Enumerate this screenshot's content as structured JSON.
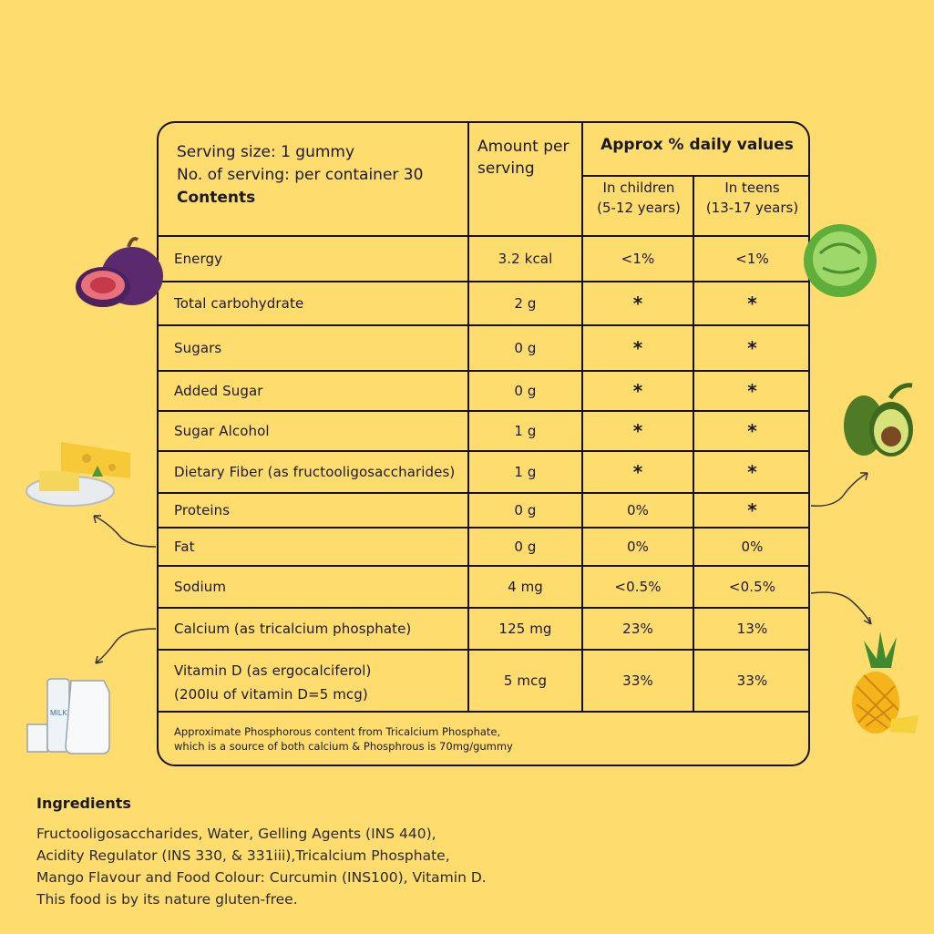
{
  "header": {
    "serving_size": "Serving size: 1 gummy",
    "servings": "No. of serving: per container 30",
    "contents": "Contents",
    "amount": "Amount per serving",
    "approx": "Approx % daily values",
    "children": "In children",
    "children_ages": "(5-12 years)",
    "teens": "In teens",
    "teens_ages": "(13-17 years)"
  },
  "rows": [
    {
      "name": "Energy",
      "amount": "3.2 kcal",
      "children": "<1%",
      "teens": "<1%"
    },
    {
      "name": "Total carbohydrate",
      "amount": "2 g",
      "children": "*",
      "teens": "*"
    },
    {
      "name": "Sugars",
      "amount": "0 g",
      "children": "*",
      "teens": "*"
    },
    {
      "name": "Added Sugar",
      "amount": "0 g",
      "children": "*",
      "teens": "*"
    },
    {
      "name": "Sugar Alcohol",
      "amount": "1 g",
      "children": "*",
      "teens": "*"
    },
    {
      "name": "Dietary Fiber (as fructooligosaccharides)",
      "amount": "1 g",
      "children": "*",
      "teens": "*"
    },
    {
      "name": "Proteins",
      "amount": "0 g",
      "children": "0%",
      "teens": "*"
    },
    {
      "name": "Fat",
      "amount": "0 g",
      "children": "0%",
      "teens": "0%"
    },
    {
      "name": "Sodium",
      "amount": "4 mg",
      "children": "<0.5%",
      "teens": "<0.5%"
    },
    {
      "name": "Calcium (as tricalcium phosphate)",
      "amount": "125 mg",
      "children": "23%",
      "teens": "13%"
    },
    {
      "name": "Vitamin D (as ergocalciferol)",
      "name2": "(200Iu of vitamin D=5 mcg)",
      "amount": "5 mcg",
      "children": "33%",
      "teens": "33%"
    }
  ],
  "note": {
    "line1": "Approximate Phosphorous content from Tricalcium Phosphate,",
    "line2": "which is a source of both calcium & Phosphrous is 70mg/gummy"
  },
  "ingredients": {
    "title": "Ingredients",
    "line1": "Fructooligosaccharides, Water, Gelling Agents (INS 440),",
    "line2": "Acidity Regulator (INS 330, & 331iii),Tricalcium Phosphate,",
    "line3": "Mango Flavour and Food Colour: Curcumin (INS100), Vitamin D.",
    "line4": "This food is by its nature gluten-free."
  },
  "illustrations": {
    "milk_label": "MILK"
  },
  "colors": {
    "background": "#FEDC6E",
    "border": "#141414"
  }
}
